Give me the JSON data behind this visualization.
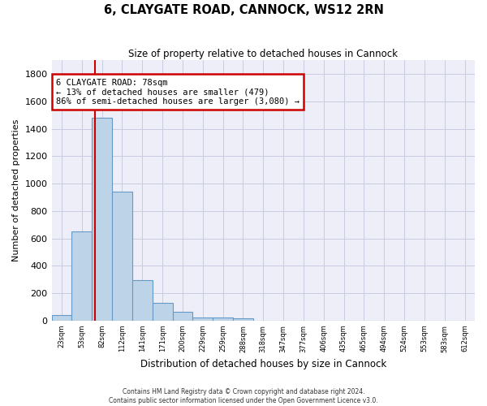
{
  "title": "6, CLAYGATE ROAD, CANNOCK, WS12 2RN",
  "subtitle": "Size of property relative to detached houses in Cannock",
  "xlabel": "Distribution of detached houses by size in Cannock",
  "ylabel": "Number of detached properties",
  "bin_labels": [
    "23sqm",
    "53sqm",
    "82sqm",
    "112sqm",
    "141sqm",
    "171sqm",
    "200sqm",
    "229sqm",
    "259sqm",
    "288sqm",
    "318sqm",
    "347sqm",
    "377sqm",
    "406sqm",
    "435sqm",
    "465sqm",
    "494sqm",
    "524sqm",
    "553sqm",
    "583sqm",
    "612sqm"
  ],
  "bar_heights": [
    40,
    650,
    1480,
    940,
    295,
    130,
    65,
    25,
    20,
    15,
    0,
    0,
    0,
    0,
    0,
    0,
    0,
    0,
    0,
    0,
    0
  ],
  "bar_color": "#bdd4e8",
  "bar_edge_color": "#6499c8",
  "vline_position": 2,
  "vline_color": "#cc0000",
  "annotation_text": "6 CLAYGATE ROAD: 78sqm\n← 13% of detached houses are smaller (479)\n86% of semi-detached houses are larger (3,080) →",
  "annotation_box_color": "#ffffff",
  "annotation_box_edge_color": "#cc0000",
  "ylim": [
    0,
    1900
  ],
  "yticks": [
    0,
    200,
    400,
    600,
    800,
    1000,
    1200,
    1400,
    1600,
    1800
  ],
  "footer": "Contains HM Land Registry data © Crown copyright and database right 2024.\nContains public sector information licensed under the Open Government Licence v3.0.",
  "grid_color": "#c8cce0",
  "background_color": "#eeeef8"
}
